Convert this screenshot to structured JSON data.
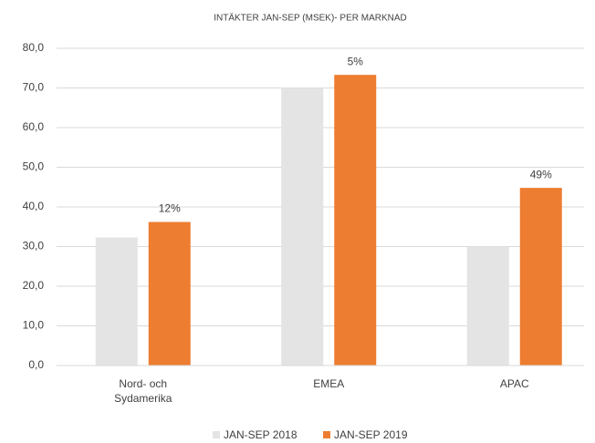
{
  "chart_data": {
    "type": "bar",
    "title": "INTÄKTER JAN-SEP (MSEK)- PER MARKNAD",
    "categories": [
      "Nord- och Sydamerika",
      "EMEA",
      "APAC"
    ],
    "series": [
      {
        "name": "JAN-SEP 2018",
        "color": "#e4e4e4",
        "values": [
          32.3,
          70.0,
          30.0
        ]
      },
      {
        "name": "JAN-SEP 2019",
        "color": "#ed7d31",
        "values": [
          36.2,
          73.3,
          44.8
        ]
      }
    ],
    "annotations": [
      "12%",
      "5%",
      "49%"
    ],
    "ylim": [
      0,
      80
    ],
    "yticks": [
      {
        "value": 0,
        "label": "0,0"
      },
      {
        "value": 10,
        "label": "10,0"
      },
      {
        "value": 20,
        "label": "20,0"
      },
      {
        "value": 30,
        "label": "30,0"
      },
      {
        "value": 40,
        "label": "40,0"
      },
      {
        "value": 50,
        "label": "50,0"
      },
      {
        "value": 60,
        "label": "60,0"
      },
      {
        "value": 70,
        "label": "70,0"
      },
      {
        "value": 80,
        "label": "80,0"
      }
    ],
    "grid": true
  }
}
